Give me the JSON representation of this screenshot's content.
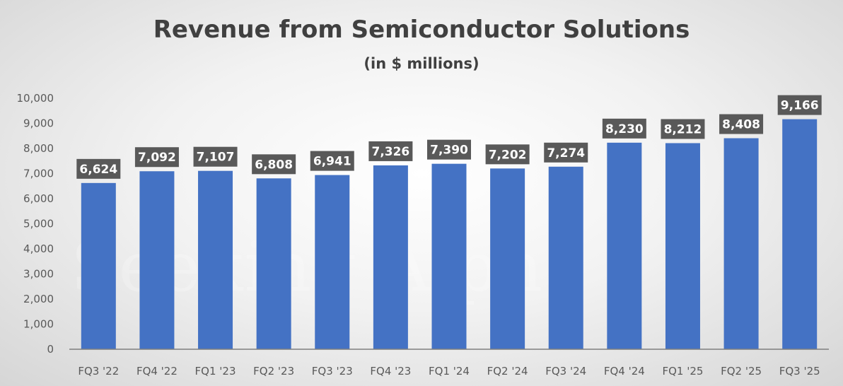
{
  "chart_data": {
    "type": "bar",
    "title": "Revenue from Semiconductor Solutions",
    "subtitle": "(in $ millions)",
    "xlabel": "",
    "ylabel": "",
    "categories": [
      "FQ3 '22",
      "FQ4 '22",
      "FQ1 '23",
      "FQ2 '23",
      "FQ3 '23",
      "FQ4 '23",
      "FQ1 '24",
      "FQ2 '24",
      "FQ3 '24",
      "FQ4 '24",
      "FQ1 '25",
      "FQ2 '25",
      "FQ3 '25"
    ],
    "values": [
      6624,
      7092,
      7107,
      6808,
      6941,
      7326,
      7390,
      7202,
      7274,
      8230,
      8212,
      8408,
      9166
    ],
    "data_labels": [
      "6,624",
      "7,092",
      "7,107",
      "6,808",
      "6,941",
      "7,326",
      "7,390",
      "7,202",
      "7,274",
      "8,230",
      "8,212",
      "8,408",
      "9,166"
    ],
    "ylim": [
      0,
      10000
    ],
    "yticks": [
      0,
      1000,
      2000,
      3000,
      4000,
      5000,
      6000,
      7000,
      8000,
      9000,
      10000
    ],
    "ytick_labels": [
      "0",
      "1,000",
      "2,000",
      "3,000",
      "4,000",
      "5,000",
      "6,000",
      "7,000",
      "8,000",
      "9,000",
      "10,000"
    ],
    "grid": false,
    "legend": "none",
    "bar_color": "#4472C4",
    "label_box_color": "#595959",
    "watermark": "Seeking Alpha"
  }
}
